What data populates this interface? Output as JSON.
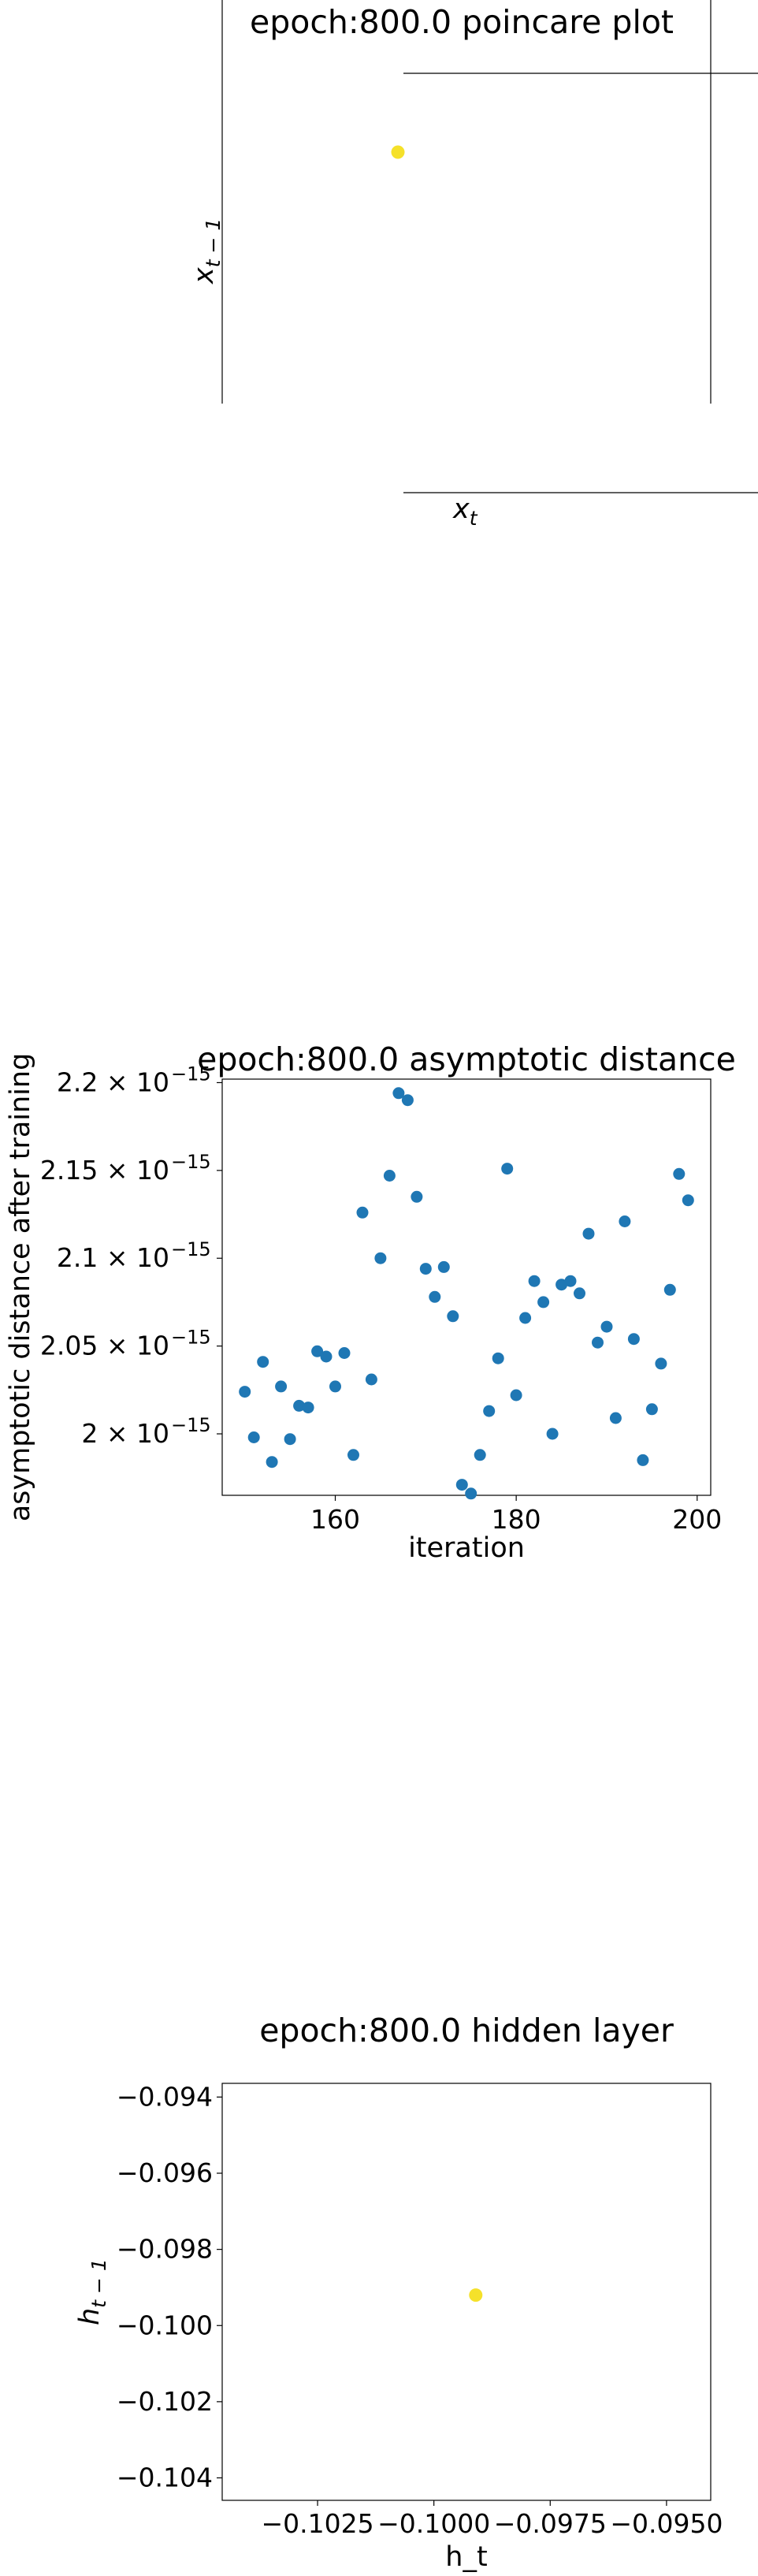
{
  "chart_data": [
    {
      "type": "scatter",
      "title": "epoch:800.0 poincare plot",
      "xlabel": "x_t",
      "ylabel": "x_{t-1}",
      "points": [
        {
          "x": 0,
          "y": 0
        }
      ],
      "color": "#f5e12a"
    },
    {
      "type": "scatter",
      "title": "epoch:800.0 asymptotic distance",
      "xlabel": "iteration",
      "ylabel": "asymptotic distance after training",
      "xlim": [
        147.5,
        201.5
      ],
      "ylim": [
        1.965e-15,
        2.202e-15
      ],
      "xticks": [
        160,
        180,
        200
      ],
      "xtick_labels": [
        "160",
        "180",
        "200"
      ],
      "yticks": [
        2e-15,
        2.05e-15,
        2.1e-15,
        2.15e-15,
        2.2e-15
      ],
      "ytick_labels": [
        "2 × 10",
        "2.05 × 10",
        "2.1 × 10",
        "2.15 × 10",
        "2.2 × 10"
      ],
      "ytick_exponent": "−15",
      "color": "#1f77b4",
      "x": [
        150,
        151,
        152,
        153,
        154,
        155,
        156,
        157,
        158,
        159,
        160,
        161,
        162,
        163,
        164,
        165,
        166,
        167,
        168,
        169,
        170,
        171,
        172,
        173,
        174,
        175,
        176,
        177,
        178,
        179,
        180,
        181,
        182,
        183,
        184,
        185,
        186,
        187,
        188,
        189,
        190,
        191,
        192,
        193,
        194,
        195,
        196,
        197,
        198,
        199
      ],
      "y": [
        2.024e-15,
        1.998e-15,
        2.041e-15,
        1.984e-15,
        2.027e-15,
        1.997e-15,
        2.016e-15,
        2.015e-15,
        2.047e-15,
        2.044e-15,
        2.027e-15,
        2.046e-15,
        1.988e-15,
        2.126e-15,
        2.031e-15,
        2.1e-15,
        2.147e-15,
        2.194e-15,
        2.19e-15,
        2.135e-15,
        2.094e-15,
        2.078e-15,
        2.095e-15,
        2.067e-15,
        1.971e-15,
        1.966e-15,
        1.988e-15,
        2.013e-15,
        2.043e-15,
        2.151e-15,
        2.022e-15,
        2.066e-15,
        2.087e-15,
        2.075e-15,
        2e-15,
        2.085e-15,
        2.087e-15,
        2.08e-15,
        2.114e-15,
        2.052e-15,
        2.061e-15,
        2.009e-15,
        2.121e-15,
        2.054e-15,
        1.985e-15,
        2.014e-15,
        2.04e-15,
        2.082e-15,
        2.148e-15,
        2.133e-15
      ]
    },
    {
      "type": "scatter",
      "title": "epoch:800.0 hidden layer",
      "xlabel": "h_t",
      "ylabel": "h_{t-1}",
      "xlim": [
        -0.10455,
        -0.09405
      ],
      "ylim": [
        -0.10459,
        -0.09364
      ],
      "xticks": [
        -0.1025,
        -0.1,
        -0.0975,
        -0.095
      ],
      "xtick_labels": [
        "−0.1025",
        "−0.1000",
        "−0.0975",
        "−0.0950"
      ],
      "yticks": [
        -0.094,
        -0.096,
        -0.098,
        -0.1,
        -0.102,
        -0.104
      ],
      "ytick_labels": [
        "−0.094",
        "−0.096",
        "−0.098",
        "−0.100",
        "−0.102",
        "−0.104"
      ],
      "points": [
        {
          "x": -0.0991,
          "y": -0.0992
        }
      ],
      "color": "#f5e12a"
    }
  ]
}
